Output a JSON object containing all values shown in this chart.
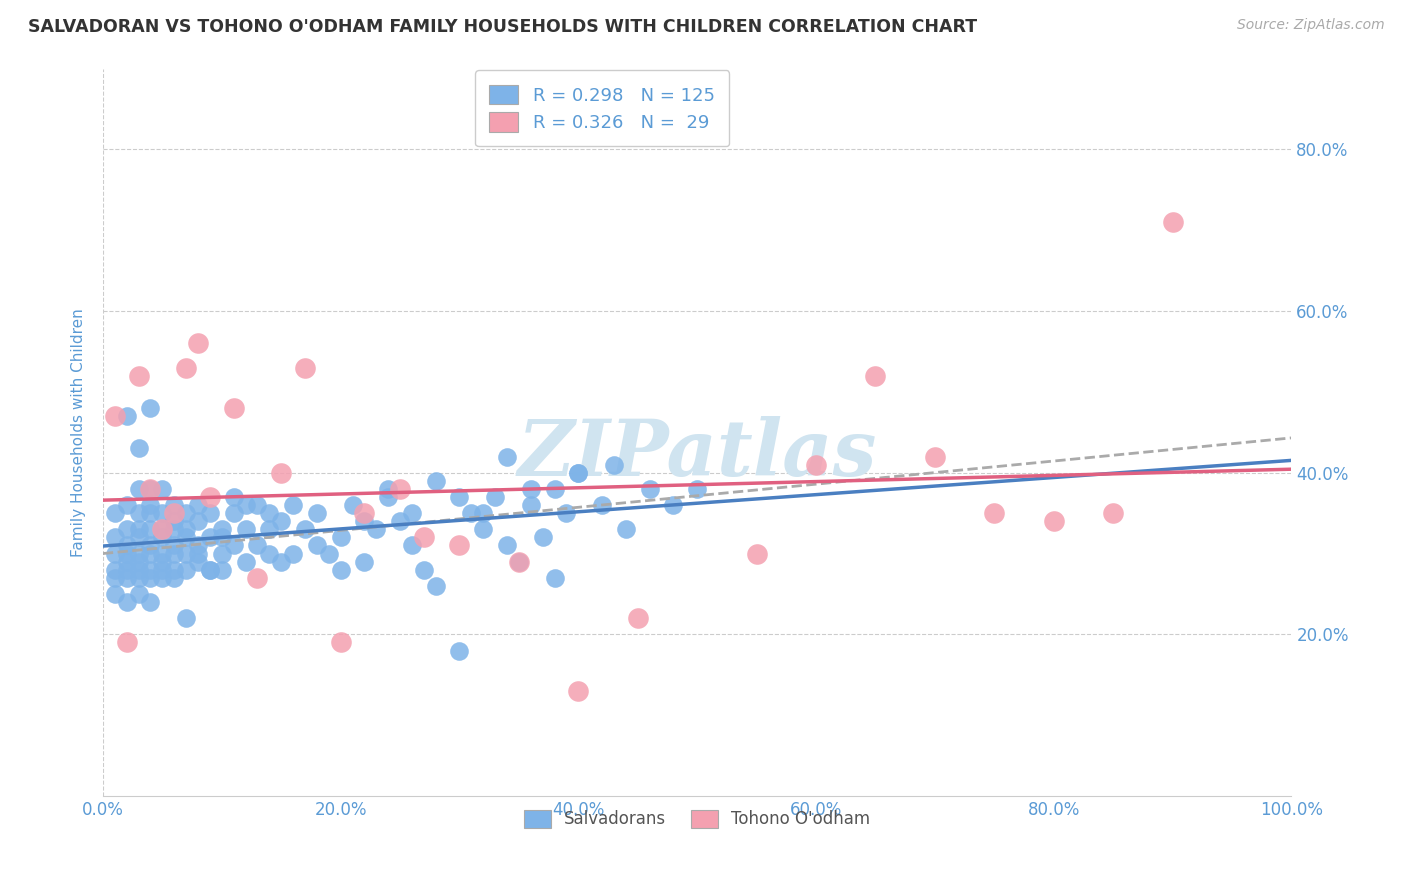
{
  "title": "SALVADORAN VS TOHONO O'ODHAM FAMILY HOUSEHOLDS WITH CHILDREN CORRELATION CHART",
  "source": "Source: ZipAtlas.com",
  "ylabel": "Family Households with Children",
  "legend_label_1": "Salvadorans",
  "legend_label_2": "Tohono O'odham",
  "r1": 0.298,
  "n1": 125,
  "r2": 0.326,
  "n2": 29,
  "color1": "#7eb3e8",
  "color2": "#f4a0b0",
  "trendline1_color": "#4a7fc1",
  "trendline2_color": "#e06080",
  "dashed_color": "#aaaaaa",
  "background": "#ffffff",
  "grid_color": "#cccccc",
  "title_color": "#333333",
  "axis_tick_color": "#5b9bd5",
  "watermark": "ZIPatlas",
  "watermark_color": "#d0e4f0",
  "xlim": [
    0.0,
    1.0
  ],
  "ylim": [
    0.0,
    0.9
  ],
  "xticks": [
    0.0,
    0.2,
    0.4,
    0.6,
    0.8,
    1.0
  ],
  "yticks": [
    0.2,
    0.4,
    0.6,
    0.8
  ],
  "seed": 42,
  "salvadoran_x": [
    0.01,
    0.01,
    0.01,
    0.01,
    0.01,
    0.01,
    0.02,
    0.02,
    0.02,
    0.02,
    0.02,
    0.02,
    0.02,
    0.02,
    0.03,
    0.03,
    0.03,
    0.03,
    0.03,
    0.03,
    0.03,
    0.03,
    0.03,
    0.04,
    0.04,
    0.04,
    0.04,
    0.04,
    0.04,
    0.04,
    0.04,
    0.04,
    0.05,
    0.05,
    0.05,
    0.05,
    0.05,
    0.05,
    0.05,
    0.06,
    0.06,
    0.06,
    0.06,
    0.06,
    0.06,
    0.07,
    0.07,
    0.07,
    0.07,
    0.07,
    0.08,
    0.08,
    0.08,
    0.08,
    0.09,
    0.09,
    0.09,
    0.1,
    0.1,
    0.1,
    0.11,
    0.11,
    0.11,
    0.12,
    0.12,
    0.13,
    0.13,
    0.14,
    0.14,
    0.15,
    0.15,
    0.16,
    0.17,
    0.18,
    0.19,
    0.2,
    0.21,
    0.22,
    0.23,
    0.24,
    0.25,
    0.26,
    0.27,
    0.28,
    0.3,
    0.31,
    0.32,
    0.33,
    0.34,
    0.35,
    0.36,
    0.37,
    0.38,
    0.39,
    0.4,
    0.42,
    0.44,
    0.46,
    0.48,
    0.5,
    0.02,
    0.03,
    0.04,
    0.05,
    0.06,
    0.07,
    0.08,
    0.09,
    0.1,
    0.12,
    0.14,
    0.16,
    0.18,
    0.2,
    0.22,
    0.24,
    0.26,
    0.28,
    0.3,
    0.32,
    0.34,
    0.36,
    0.38,
    0.4,
    0.43
  ],
  "salvadoran_y": [
    0.3,
    0.28,
    0.32,
    0.27,
    0.35,
    0.25,
    0.31,
    0.29,
    0.33,
    0.27,
    0.36,
    0.28,
    0.3,
    0.24,
    0.32,
    0.28,
    0.35,
    0.3,
    0.27,
    0.33,
    0.38,
    0.25,
    0.29,
    0.31,
    0.35,
    0.28,
    0.33,
    0.27,
    0.3,
    0.36,
    0.24,
    0.38,
    0.32,
    0.29,
    0.35,
    0.27,
    0.33,
    0.3,
    0.28,
    0.34,
    0.31,
    0.28,
    0.36,
    0.3,
    0.27,
    0.33,
    0.35,
    0.3,
    0.28,
    0.32,
    0.34,
    0.29,
    0.31,
    0.36,
    0.32,
    0.28,
    0.35,
    0.33,
    0.3,
    0.28,
    0.35,
    0.31,
    0.37,
    0.33,
    0.29,
    0.36,
    0.31,
    0.35,
    0.3,
    0.34,
    0.29,
    0.36,
    0.33,
    0.35,
    0.3,
    0.32,
    0.36,
    0.29,
    0.33,
    0.37,
    0.34,
    0.31,
    0.28,
    0.26,
    0.18,
    0.35,
    0.33,
    0.37,
    0.31,
    0.29,
    0.38,
    0.32,
    0.27,
    0.35,
    0.4,
    0.36,
    0.33,
    0.38,
    0.36,
    0.38,
    0.47,
    0.43,
    0.48,
    0.38,
    0.33,
    0.22,
    0.3,
    0.28,
    0.32,
    0.36,
    0.33,
    0.3,
    0.31,
    0.28,
    0.34,
    0.38,
    0.35,
    0.39,
    0.37,
    0.35,
    0.42,
    0.36,
    0.38,
    0.4,
    0.41
  ],
  "tohono_x": [
    0.01,
    0.02,
    0.03,
    0.04,
    0.05,
    0.06,
    0.07,
    0.08,
    0.09,
    0.11,
    0.13,
    0.15,
    0.17,
    0.2,
    0.22,
    0.25,
    0.27,
    0.3,
    0.35,
    0.4,
    0.45,
    0.55,
    0.6,
    0.65,
    0.7,
    0.75,
    0.8,
    0.85,
    0.9
  ],
  "tohono_y": [
    0.47,
    0.19,
    0.52,
    0.38,
    0.33,
    0.35,
    0.53,
    0.56,
    0.37,
    0.48,
    0.27,
    0.4,
    0.53,
    0.19,
    0.35,
    0.38,
    0.32,
    0.31,
    0.29,
    0.13,
    0.22,
    0.3,
    0.41,
    0.52,
    0.42,
    0.35,
    0.34,
    0.35,
    0.71
  ]
}
